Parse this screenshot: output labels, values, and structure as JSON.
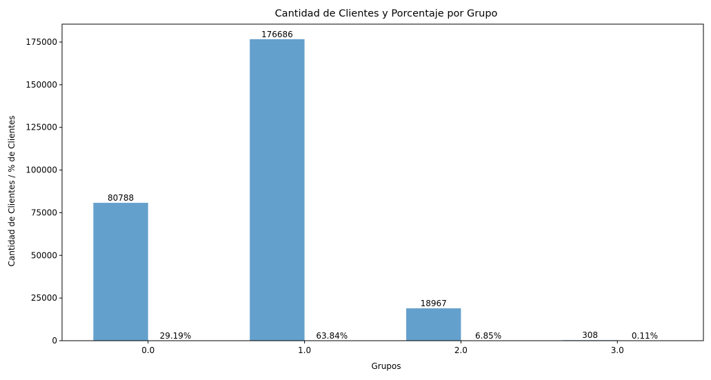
{
  "chart_data": {
    "type": "bar",
    "title": "Cantidad de Clientes y Porcentaje por Grupo",
    "xlabel": "Grupos",
    "ylabel": "Cantidad de Clientes / % de Clientes",
    "categories": [
      "0.0",
      "1.0",
      "2.0",
      "3.0"
    ],
    "series": [
      {
        "values": [
          80788,
          176686,
          18967,
          308
        ],
        "value_labels": [
          "80788",
          "176686",
          "18967",
          "308"
        ],
        "color": "#64a0cc"
      },
      {
        "values": [
          29.19,
          63.84,
          6.85,
          0.11
        ],
        "value_labels": [
          "29.19%",
          "63.84%",
          "6.85%",
          "0.11%"
        ],
        "color": "#64a0cc"
      }
    ],
    "ylim": [
      0,
      185500
    ],
    "yticks": [
      0,
      25000,
      50000,
      75000,
      100000,
      125000,
      150000,
      175000
    ],
    "ytick_labels": [
      "0",
      "25000",
      "50000",
      "75000",
      "100000",
      "125000",
      "150000",
      "175000"
    ],
    "xlim": [
      -0.55,
      3.55
    ],
    "grid": false,
    "legend": false
  }
}
